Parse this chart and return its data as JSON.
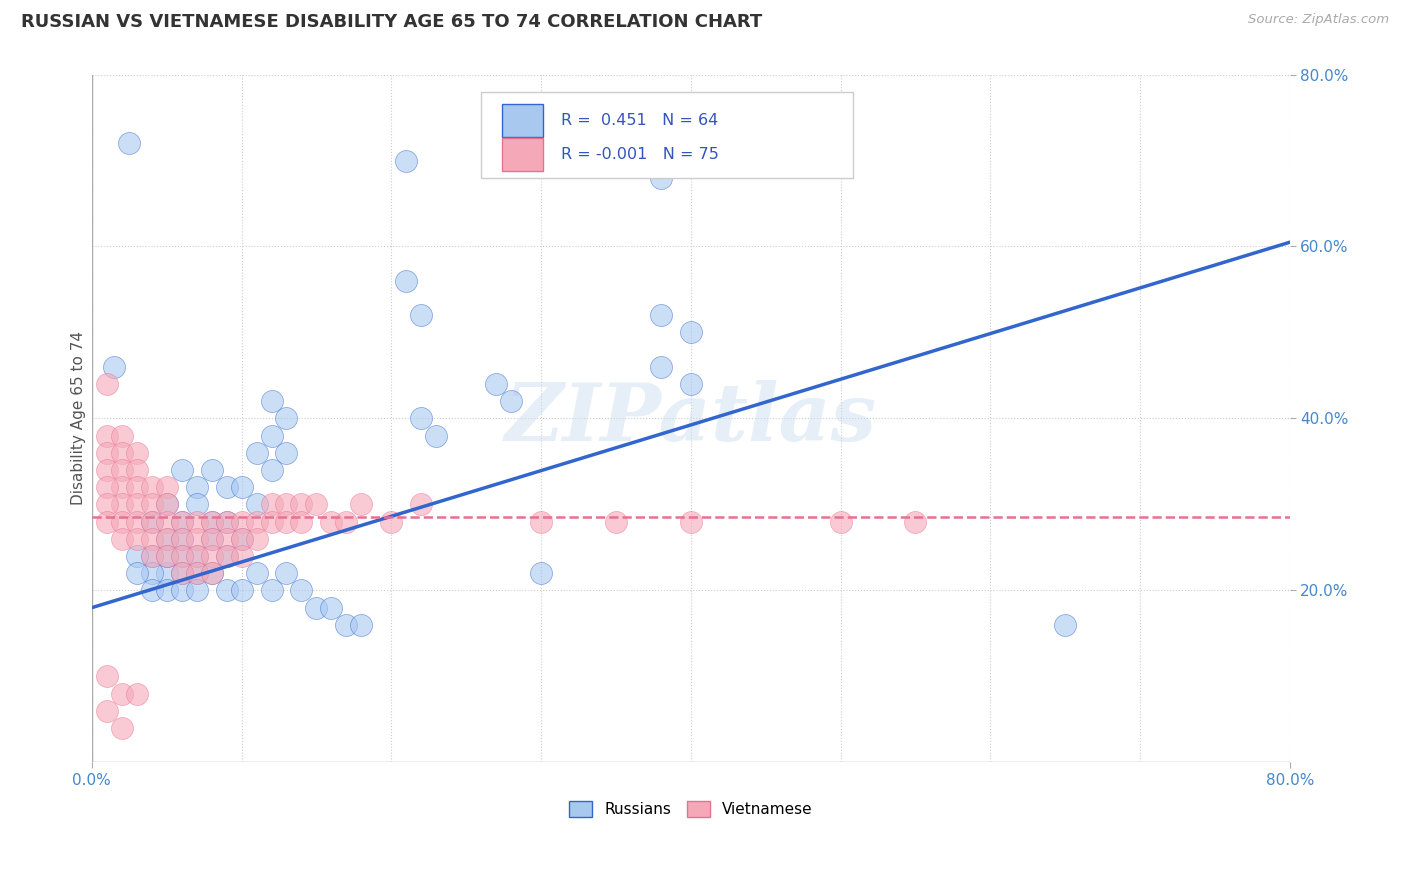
{
  "title": "RUSSIAN VS VIETNAMESE DISABILITY AGE 65 TO 74 CORRELATION CHART",
  "source_text": "Source: ZipAtlas.com",
  "ylabel": "Disability Age 65 to 74",
  "xlim": [
    0.0,
    0.8
  ],
  "ylim": [
    0.0,
    0.8
  ],
  "russian_color": "#a8c8f0",
  "vietnamese_color": "#f5a8b8",
  "russian_line_color": "#3366cc",
  "vietnamese_line_color": "#e87090",
  "watermark": "ZIPatlas",
  "background_color": "#ffffff",
  "grid_color": "#cccccc",
  "russian_scatter": [
    [
      0.025,
      0.72
    ],
    [
      0.21,
      0.7
    ],
    [
      0.38,
      0.68
    ],
    [
      0.21,
      0.56
    ],
    [
      0.22,
      0.52
    ],
    [
      0.38,
      0.52
    ],
    [
      0.4,
      0.5
    ],
    [
      0.38,
      0.46
    ],
    [
      0.4,
      0.44
    ],
    [
      0.015,
      0.46
    ],
    [
      0.27,
      0.44
    ],
    [
      0.28,
      0.42
    ],
    [
      0.12,
      0.42
    ],
    [
      0.13,
      0.4
    ],
    [
      0.22,
      0.4
    ],
    [
      0.23,
      0.38
    ],
    [
      0.12,
      0.38
    ],
    [
      0.13,
      0.36
    ],
    [
      0.11,
      0.36
    ],
    [
      0.12,
      0.34
    ],
    [
      0.06,
      0.34
    ],
    [
      0.07,
      0.32
    ],
    [
      0.08,
      0.34
    ],
    [
      0.09,
      0.32
    ],
    [
      0.1,
      0.32
    ],
    [
      0.11,
      0.3
    ],
    [
      0.05,
      0.3
    ],
    [
      0.06,
      0.28
    ],
    [
      0.07,
      0.3
    ],
    [
      0.08,
      0.28
    ],
    [
      0.09,
      0.28
    ],
    [
      0.1,
      0.26
    ],
    [
      0.04,
      0.28
    ],
    [
      0.05,
      0.26
    ],
    [
      0.06,
      0.26
    ],
    [
      0.07,
      0.24
    ],
    [
      0.08,
      0.26
    ],
    [
      0.09,
      0.24
    ],
    [
      0.04,
      0.24
    ],
    [
      0.05,
      0.22
    ],
    [
      0.06,
      0.24
    ],
    [
      0.07,
      0.22
    ],
    [
      0.03,
      0.24
    ],
    [
      0.04,
      0.22
    ],
    [
      0.05,
      0.24
    ],
    [
      0.06,
      0.22
    ],
    [
      0.03,
      0.22
    ],
    [
      0.04,
      0.2
    ],
    [
      0.05,
      0.2
    ],
    [
      0.06,
      0.2
    ],
    [
      0.07,
      0.2
    ],
    [
      0.08,
      0.22
    ],
    [
      0.09,
      0.2
    ],
    [
      0.1,
      0.2
    ],
    [
      0.11,
      0.22
    ],
    [
      0.12,
      0.2
    ],
    [
      0.13,
      0.22
    ],
    [
      0.14,
      0.2
    ],
    [
      0.15,
      0.18
    ],
    [
      0.16,
      0.18
    ],
    [
      0.17,
      0.16
    ],
    [
      0.18,
      0.16
    ],
    [
      0.65,
      0.16
    ],
    [
      0.3,
      0.22
    ]
  ],
  "vietnamese_scatter": [
    [
      0.01,
      0.44
    ],
    [
      0.01,
      0.38
    ],
    [
      0.01,
      0.36
    ],
    [
      0.01,
      0.34
    ],
    [
      0.02,
      0.38
    ],
    [
      0.02,
      0.36
    ],
    [
      0.02,
      0.34
    ],
    [
      0.02,
      0.32
    ],
    [
      0.02,
      0.3
    ],
    [
      0.01,
      0.32
    ],
    [
      0.01,
      0.3
    ],
    [
      0.01,
      0.28
    ],
    [
      0.02,
      0.28
    ],
    [
      0.02,
      0.26
    ],
    [
      0.03,
      0.36
    ],
    [
      0.03,
      0.34
    ],
    [
      0.03,
      0.32
    ],
    [
      0.03,
      0.3
    ],
    [
      0.03,
      0.28
    ],
    [
      0.03,
      0.26
    ],
    [
      0.04,
      0.32
    ],
    [
      0.04,
      0.3
    ],
    [
      0.04,
      0.28
    ],
    [
      0.04,
      0.26
    ],
    [
      0.04,
      0.24
    ],
    [
      0.05,
      0.32
    ],
    [
      0.05,
      0.3
    ],
    [
      0.05,
      0.28
    ],
    [
      0.05,
      0.26
    ],
    [
      0.05,
      0.24
    ],
    [
      0.06,
      0.28
    ],
    [
      0.06,
      0.26
    ],
    [
      0.06,
      0.24
    ],
    [
      0.06,
      0.22
    ],
    [
      0.07,
      0.28
    ],
    [
      0.07,
      0.26
    ],
    [
      0.07,
      0.24
    ],
    [
      0.07,
      0.22
    ],
    [
      0.08,
      0.28
    ],
    [
      0.08,
      0.26
    ],
    [
      0.08,
      0.24
    ],
    [
      0.08,
      0.22
    ],
    [
      0.09,
      0.28
    ],
    [
      0.09,
      0.26
    ],
    [
      0.09,
      0.24
    ],
    [
      0.1,
      0.28
    ],
    [
      0.1,
      0.26
    ],
    [
      0.1,
      0.24
    ],
    [
      0.11,
      0.28
    ],
    [
      0.11,
      0.26
    ],
    [
      0.12,
      0.3
    ],
    [
      0.12,
      0.28
    ],
    [
      0.13,
      0.3
    ],
    [
      0.13,
      0.28
    ],
    [
      0.14,
      0.3
    ],
    [
      0.14,
      0.28
    ],
    [
      0.15,
      0.3
    ],
    [
      0.16,
      0.28
    ],
    [
      0.17,
      0.28
    ],
    [
      0.18,
      0.3
    ],
    [
      0.2,
      0.28
    ],
    [
      0.22,
      0.3
    ],
    [
      0.3,
      0.28
    ],
    [
      0.35,
      0.28
    ],
    [
      0.4,
      0.28
    ],
    [
      0.5,
      0.28
    ],
    [
      0.55,
      0.28
    ],
    [
      0.01,
      0.1
    ],
    [
      0.01,
      0.06
    ],
    [
      0.02,
      0.08
    ],
    [
      0.03,
      0.08
    ],
    [
      0.02,
      0.04
    ]
  ],
  "russian_line_x": [
    0.0,
    0.8
  ],
  "russian_line_y": [
    0.18,
    0.605
  ],
  "vietnamese_line_x": [
    0.0,
    0.8
  ],
  "vietnamese_line_y": [
    0.285,
    0.285
  ]
}
